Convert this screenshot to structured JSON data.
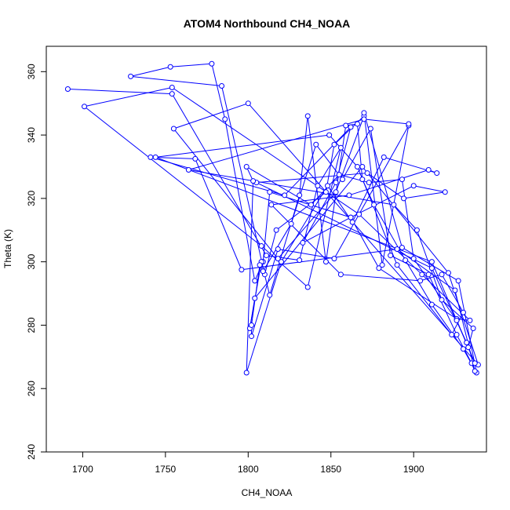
{
  "chart_data": {
    "type": "line",
    "title": "ATOM4 Northbound CH4_NOAA",
    "xlabel": "CH4_NOAA",
    "ylabel": "Theta (K)",
    "xlim": [
      1678,
      1944
    ],
    "ylim": [
      240,
      368
    ],
    "x_ticks": [
      "1700",
      "1750",
      "1800",
      "1850",
      "1900"
    ],
    "y_ticks": [
      "240",
      "260",
      "280",
      "300",
      "320",
      "340",
      "360"
    ],
    "grid": false,
    "legend": "none",
    "series_color": "#0000ff",
    "series": [
      {
        "points": [
          [
            1691,
            354.5
          ],
          [
            1754,
            353
          ],
          [
            1811,
            302
          ],
          [
            1831,
            300.5
          ],
          [
            1842,
            324
          ],
          [
            1856,
            336
          ],
          [
            1836,
            292
          ],
          [
            1808,
            305
          ],
          [
            1701,
            349
          ],
          [
            1754,
            355
          ],
          [
            1867,
            315
          ],
          [
            1905,
            296
          ],
          [
            1934,
            281.5
          ],
          [
            1926,
            282
          ],
          [
            1879,
            298
          ],
          [
            1862,
            314
          ],
          [
            1813,
            322
          ],
          [
            1809,
            300
          ],
          [
            1804,
            294
          ],
          [
            1786,
            345
          ],
          [
            1778,
            362.5
          ],
          [
            1753,
            361.5
          ],
          [
            1729,
            358.5
          ],
          [
            1784,
            355.5
          ],
          [
            1810,
            296
          ],
          [
            1817,
            310
          ],
          [
            1847,
            322
          ],
          [
            1852,
            337
          ],
          [
            1870,
            346
          ],
          [
            1853,
            322
          ],
          [
            1818,
            301
          ],
          [
            1755,
            342
          ],
          [
            1800,
            350
          ],
          [
            1939,
            267.5
          ],
          [
            1921,
            296.5
          ],
          [
            1869,
            330
          ],
          [
            1804,
            288.5
          ],
          [
            1801,
            279
          ],
          [
            1808,
            300
          ],
          [
            1813,
            289.5
          ],
          [
            1831,
            321
          ],
          [
            1836,
            346
          ],
          [
            1847,
            300
          ],
          [
            1859,
            343
          ],
          [
            1866,
            343.5
          ],
          [
            1869,
            326
          ],
          [
            1876,
            318
          ],
          [
            1895,
            300.5
          ],
          [
            1911,
            286.5
          ],
          [
            1930,
            272.5
          ],
          [
            1938,
            265
          ],
          [
            1927,
            294
          ],
          [
            1893,
            304.5
          ],
          [
            1870,
            347
          ],
          [
            1881,
            299
          ],
          [
            1897,
            343
          ],
          [
            1852,
            301
          ],
          [
            1818,
            304
          ],
          [
            1802,
            276.5
          ],
          [
            1802,
            280
          ],
          [
            1807,
            299
          ],
          [
            1809,
            297
          ],
          [
            1826,
            312
          ],
          [
            1841,
            337
          ],
          [
            1857,
            326
          ],
          [
            1874,
            342
          ],
          [
            1886,
            302
          ],
          [
            1909,
            296
          ],
          [
            1926,
            277
          ],
          [
            1935,
            268
          ],
          [
            1937,
            265.5
          ],
          [
            1925,
            291
          ],
          [
            1890,
            304
          ],
          [
            1796,
            297.5
          ],
          [
            1768,
            332.5
          ],
          [
            1741,
            333
          ],
          [
            1822,
            321
          ],
          [
            1862,
            342.5
          ],
          [
            1853,
            325
          ],
          [
            1833,
            306
          ],
          [
            1862,
            314
          ],
          [
            1900,
            324
          ],
          [
            1919,
            322
          ],
          [
            1894,
            320
          ],
          [
            1872,
            328
          ],
          [
            1805,
            325
          ],
          [
            1911,
            298
          ],
          [
            1932,
            274.5
          ],
          [
            1937,
            268
          ],
          [
            1926,
            281.5
          ],
          [
            1900,
            301
          ],
          [
            1893,
            326
          ],
          [
            1873,
            325
          ],
          [
            1855,
            327.5
          ],
          [
            1838,
            318
          ],
          [
            1799,
            330
          ],
          [
            1803,
            325.5
          ],
          [
            1799,
            265
          ],
          [
            1820,
            300
          ],
          [
            1848,
            324
          ],
          [
            1863,
            312.5
          ],
          [
            1882,
            333
          ],
          [
            1914,
            328
          ],
          [
            1909,
            329
          ],
          [
            1861,
            321
          ],
          [
            1814,
            318
          ],
          [
            1856,
            296
          ],
          [
            1904,
            294
          ],
          [
            1917,
            296
          ],
          [
            1930,
            284
          ],
          [
            1923,
            277
          ],
          [
            1890,
            299
          ],
          [
            1866,
            330
          ],
          [
            1849,
            340
          ],
          [
            1744,
            333
          ],
          [
            1911,
            300
          ],
          [
            1933,
            273
          ],
          [
            1936,
            279
          ],
          [
            1917,
            288
          ],
          [
            1902,
            310
          ],
          [
            1888,
            318
          ],
          [
            1764,
            329
          ],
          [
            1870,
            345
          ],
          [
            1897,
            343.5
          ]
        ]
      }
    ]
  }
}
